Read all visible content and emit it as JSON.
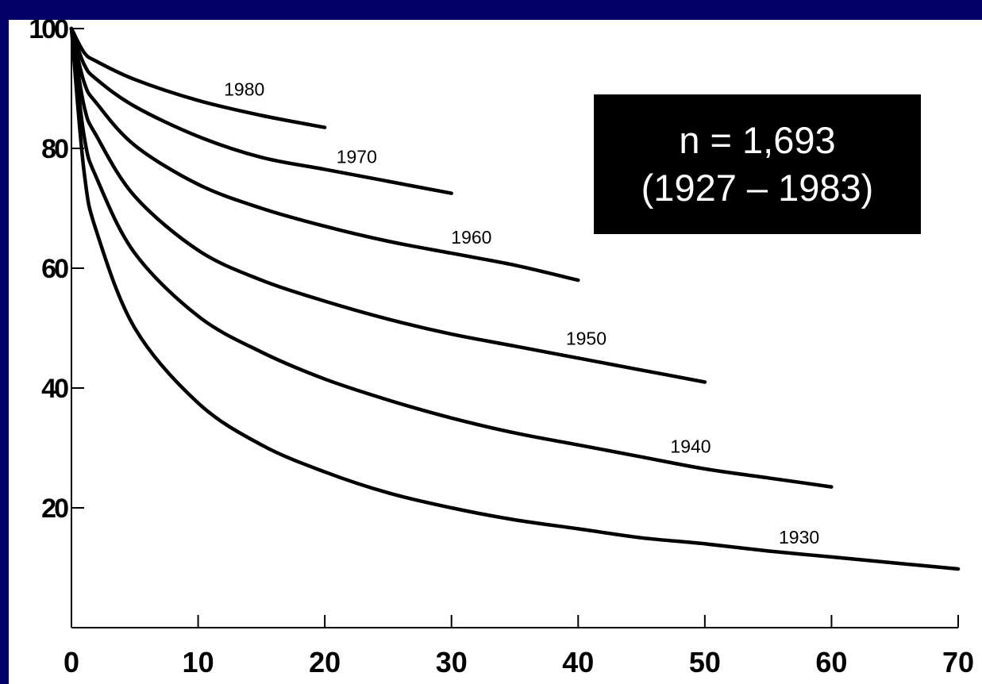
{
  "colors": {
    "background": "#000066",
    "plot_area": "#ffffff",
    "ink": "#000000",
    "annotation_bg": "#000000",
    "annotation_text": "#ffffff"
  },
  "annotation": {
    "line1": "n = 1,693",
    "line2": "(1927 – 1983)"
  },
  "chart_data": {
    "type": "line",
    "title": "",
    "xlabel": "",
    "ylabel": "",
    "xlim": [
      0,
      70
    ],
    "ylim": [
      0,
      100
    ],
    "x_ticks": [
      0,
      10,
      20,
      30,
      40,
      50,
      60,
      70
    ],
    "y_ticks": [
      20,
      40,
      60,
      80,
      100
    ],
    "x_tick_labels": [
      "0",
      "10",
      "20",
      "30",
      "40",
      "50",
      "60",
      "70"
    ],
    "y_tick_labels": [
      "20",
      "40",
      "60",
      "80",
      "100"
    ],
    "grid": false,
    "legend": "none",
    "series": [
      {
        "name": "1980",
        "x": [
          0,
          1,
          2,
          5,
          10,
          15,
          20
        ],
        "y": [
          100,
          96,
          94.5,
          91.5,
          88,
          85.5,
          83.5
        ]
      },
      {
        "name": "1970",
        "x": [
          0,
          1,
          2,
          5,
          10,
          15,
          20,
          25,
          30
        ],
        "y": [
          100,
          94,
          91.5,
          87,
          82,
          78.5,
          76.5,
          74.5,
          72.5
        ]
      },
      {
        "name": "1960",
        "x": [
          0,
          1,
          2,
          5,
          10,
          15,
          20,
          25,
          30,
          35,
          40
        ],
        "y": [
          100,
          91,
          87.5,
          80.5,
          74,
          70,
          67,
          64.5,
          62.5,
          60.5,
          58
        ]
      },
      {
        "name": "1950",
        "x": [
          0,
          1,
          2,
          5,
          10,
          15,
          20,
          25,
          30,
          35,
          40,
          45,
          50
        ],
        "y": [
          100,
          87,
          82,
          72,
          63,
          58,
          54.5,
          51.5,
          49,
          47,
          45,
          43,
          41
        ]
      },
      {
        "name": "1940",
        "x": [
          0,
          1,
          2,
          5,
          10,
          15,
          20,
          25,
          30,
          35,
          40,
          45,
          50,
          55,
          60
        ],
        "y": [
          100,
          82,
          75,
          62.5,
          52,
          46,
          41.5,
          38,
          35,
          32.5,
          30.5,
          28.5,
          26.5,
          25,
          23.5
        ]
      },
      {
        "name": "1930",
        "x": [
          0,
          1,
          2,
          5,
          10,
          15,
          20,
          25,
          30,
          35,
          40,
          45,
          50,
          55,
          60,
          65,
          70
        ],
        "y": [
          100,
          76,
          66,
          50,
          37.5,
          30.5,
          26,
          22.5,
          20,
          18,
          16.5,
          15,
          14,
          12.8,
          11.8,
          10.8,
          9.8
        ]
      }
    ]
  }
}
